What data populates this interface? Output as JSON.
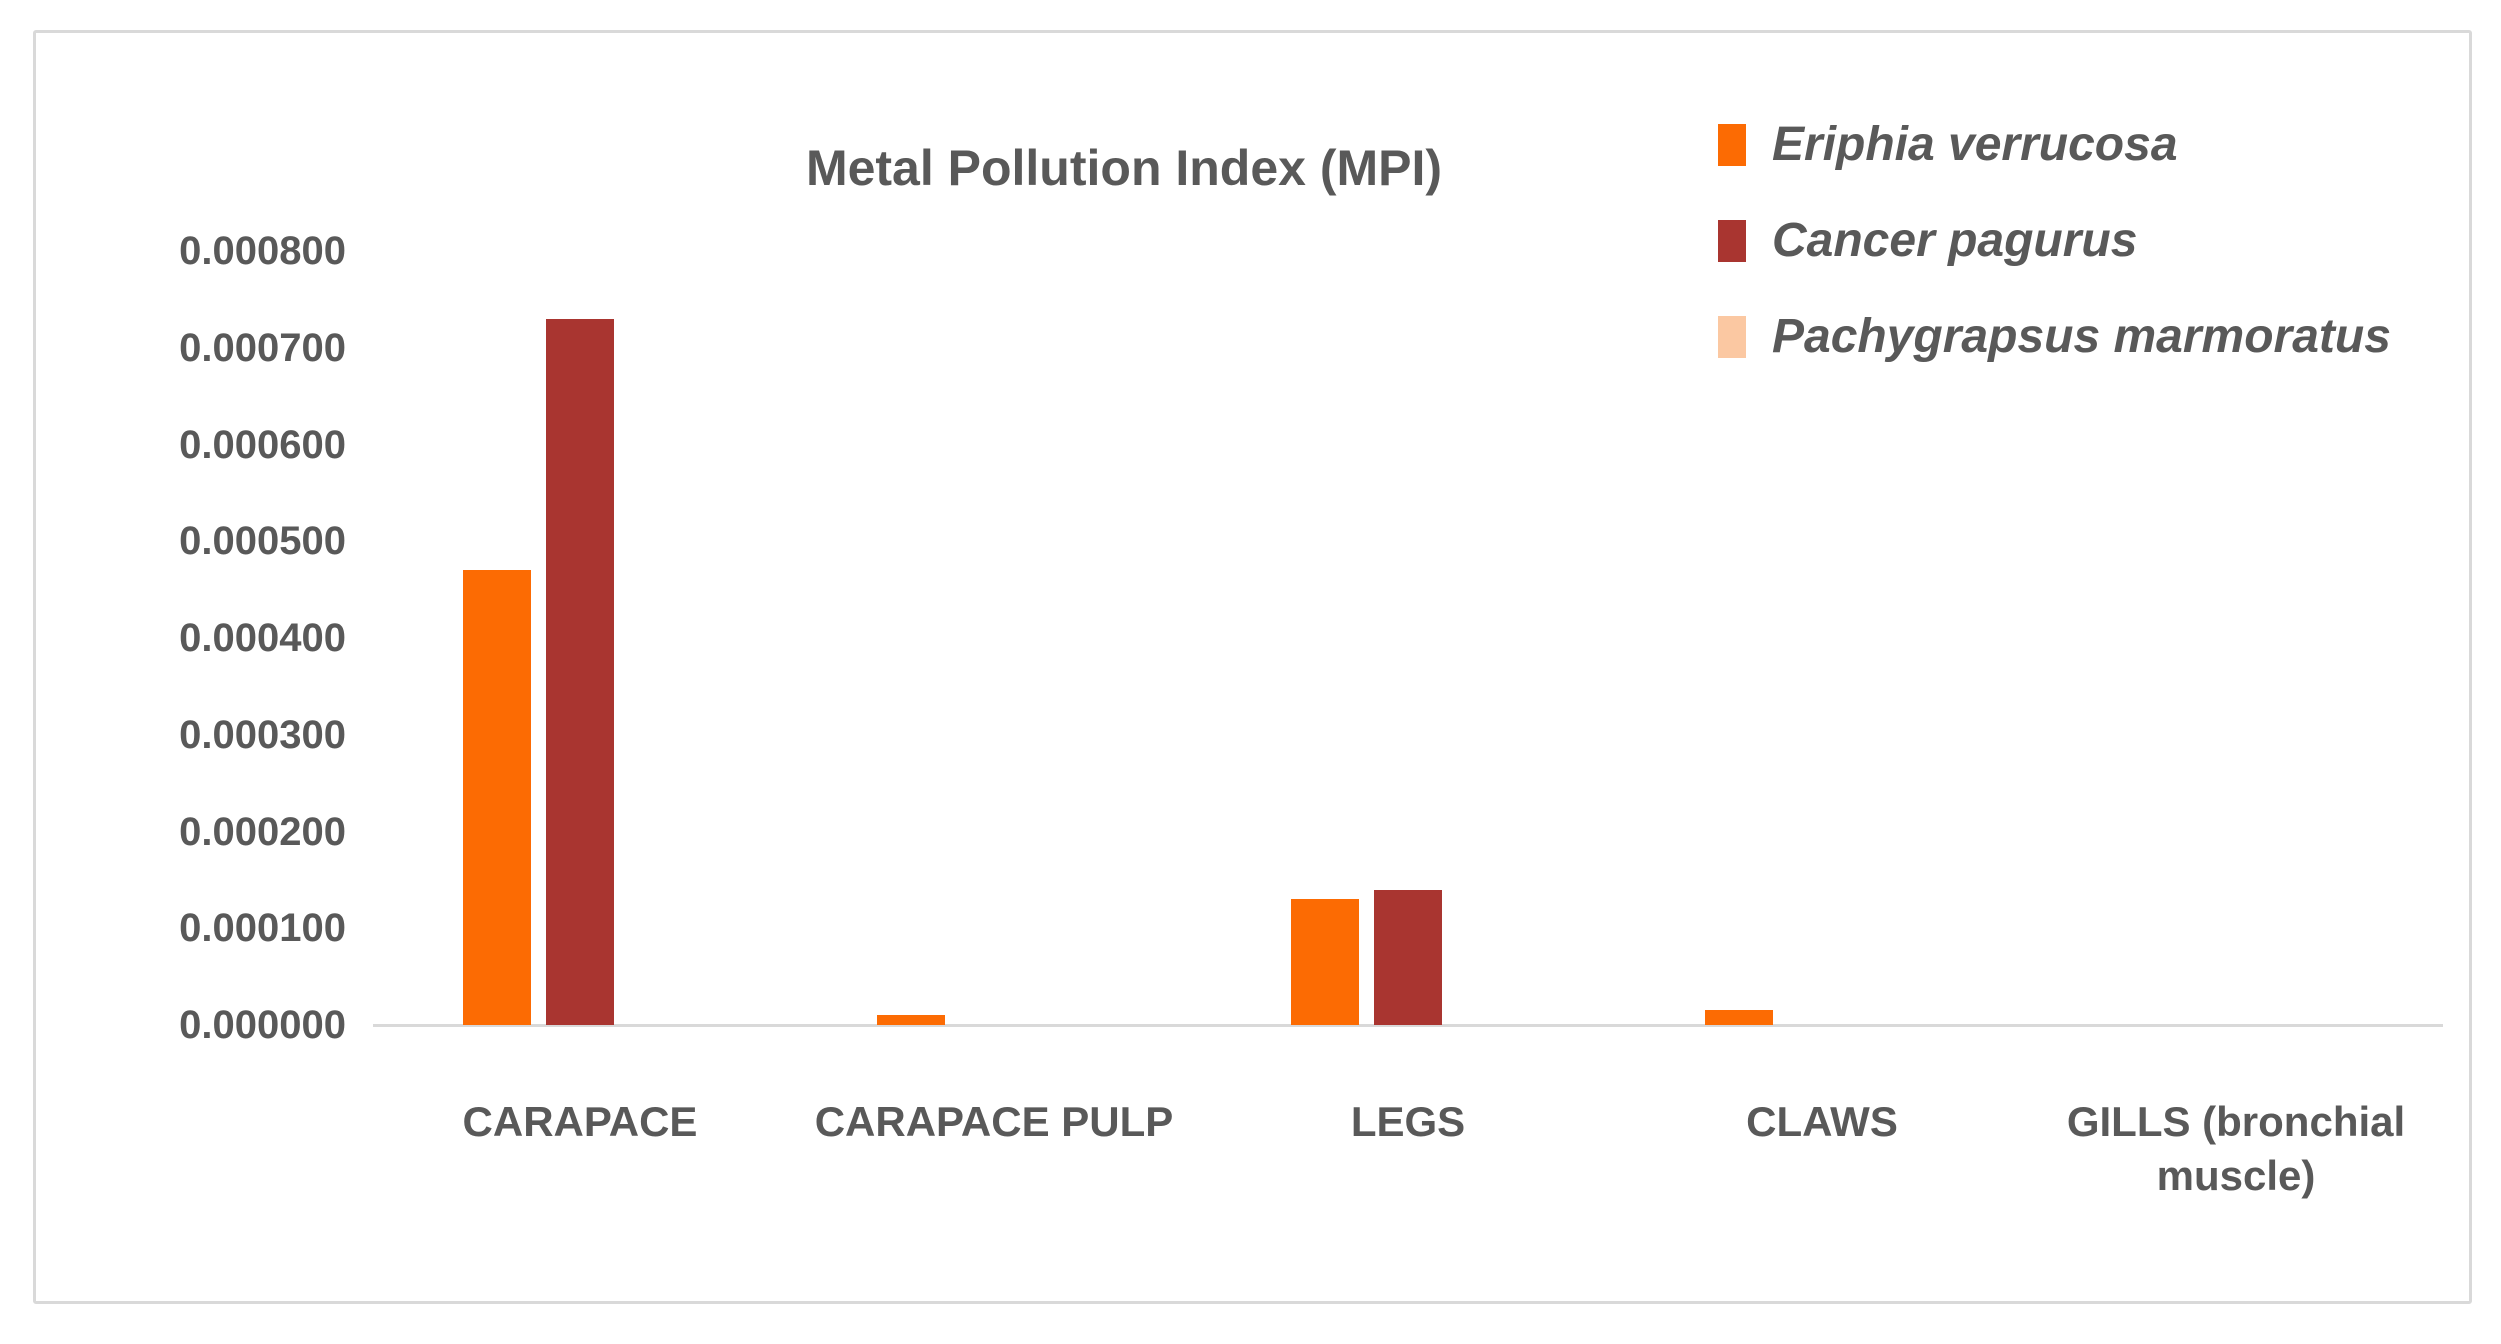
{
  "figure": {
    "background": "#ffffff",
    "border_color": "#d9d9d9",
    "axis_line_color": "#d9d9d9",
    "text_color": "#595959"
  },
  "chart": {
    "title": "Metal Pollution Index (MPI)"
  },
  "legend": {
    "position": "top-right",
    "items": [
      {
        "label": "Eriphia verrucosa",
        "color": "#fc6b03"
      },
      {
        "label": "Cancer pagurus",
        "color": "#a93530"
      },
      {
        "label": "Pachygrapsus marmoratus",
        "color": "#fbc8a2"
      }
    ]
  },
  "chart_data": {
    "type": "bar",
    "title": "Metal Pollution Index (MPI)",
    "xlabel": "",
    "ylabel": "",
    "categories": [
      "CARAPACE",
      "CARAPACE PULP",
      "LEGS",
      "CLAWS",
      "GILLS (bronchial muscle)"
    ],
    "series": [
      {
        "name": "Eriphia verrucosa",
        "color": "#fc6b03",
        "values": [
          0.00047,
          1e-05,
          0.00013,
          1.6e-05,
          0
        ]
      },
      {
        "name": "Cancer pagurus",
        "color": "#a93530",
        "values": [
          0.00073,
          0,
          0.00014,
          0,
          0
        ]
      },
      {
        "name": "Pachygrapsus marmoratus",
        "color": "#fbc8a2",
        "values": [
          0,
          0,
          0,
          0,
          0
        ]
      }
    ],
    "ylim": [
      0,
      0.0008
    ],
    "ytick_step": 0.0001,
    "yticks": [
      "0.000000",
      "0.000100",
      "0.000200",
      "0.000300",
      "0.000400",
      "0.000500",
      "0.000600",
      "0.000700",
      "0.000800"
    ],
    "grid": false,
    "legend_position": "top-right"
  }
}
